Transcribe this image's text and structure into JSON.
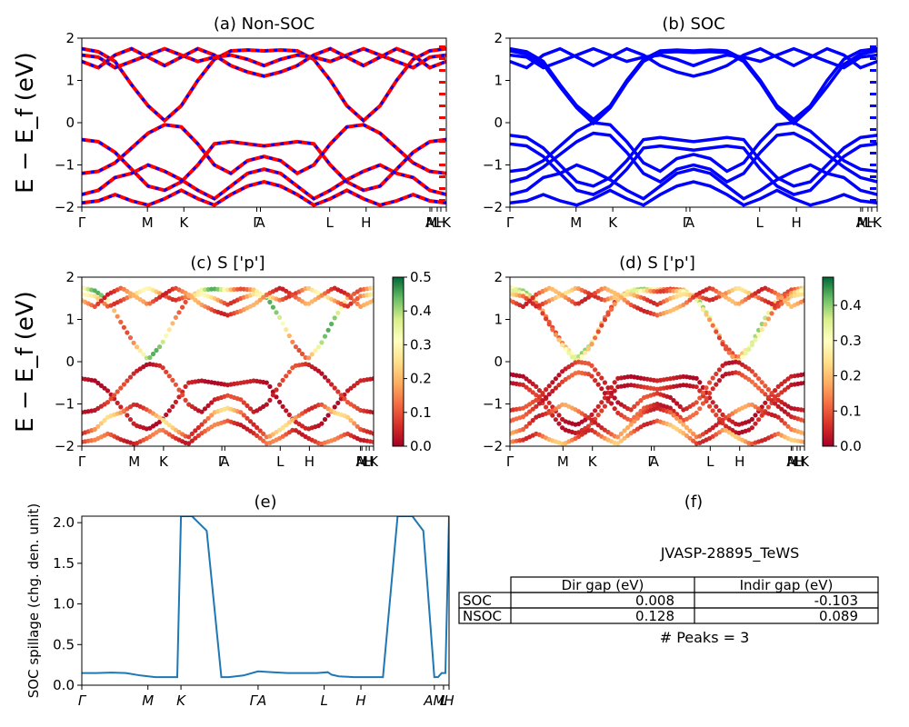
{
  "chart_data": [
    {
      "id": "a",
      "type": "line",
      "title": "(a) Non-SOC",
      "ylabel": "E − E_f (eV)",
      "ylim": [
        -2,
        2
      ],
      "yticks": [
        "2",
        "1",
        "0",
        "−1",
        "−2"
      ],
      "kpath_labels": [
        "Γ",
        "M",
        "K",
        "Γ",
        "A",
        "L",
        "H",
        "A",
        "M",
        "L",
        "H",
        "K"
      ],
      "series_colors": [
        "#ff0000",
        "#0000ff"
      ],
      "series": [
        {
          "values": [
            1.75,
            1.68,
            1.45,
            0.9,
            0.4,
            0.05,
            0.4,
            1.0,
            1.5,
            1.7,
            1.72,
            1.7,
            1.72,
            1.7,
            1.5,
            1.0,
            0.4,
            0.05,
            0.4,
            1.0,
            1.5,
            1.7,
            1.75
          ]
        },
        {
          "values": [
            1.6,
            1.55,
            1.3,
            1.45,
            1.6,
            1.75,
            1.6,
            1.45,
            1.55,
            1.6,
            1.5,
            1.35,
            1.5,
            1.6,
            1.55,
            1.45,
            1.6,
            1.75,
            1.6,
            1.45,
            1.3,
            1.55,
            1.6
          ]
        },
        {
          "values": [
            1.45,
            1.3,
            1.6,
            1.75,
            1.55,
            1.35,
            1.55,
            1.75,
            1.6,
            1.35,
            1.2,
            1.1,
            1.2,
            1.35,
            1.6,
            1.75,
            1.55,
            1.35,
            1.55,
            1.75,
            1.6,
            1.3,
            1.45
          ]
        },
        {
          "values": [
            -0.4,
            -0.45,
            -0.7,
            -1.1,
            -1.5,
            -1.6,
            -1.4,
            -1.0,
            -0.5,
            -0.45,
            -0.5,
            -0.55,
            -0.5,
            -0.45,
            -0.5,
            -1.0,
            -1.4,
            -1.6,
            -1.5,
            -1.1,
            -0.7,
            -0.45,
            -0.4
          ]
        },
        {
          "values": [
            -1.2,
            -1.15,
            -0.95,
            -0.6,
            -0.25,
            -0.05,
            -0.1,
            -0.5,
            -1.0,
            -1.2,
            -0.9,
            -0.8,
            -0.9,
            -1.2,
            -1.0,
            -0.5,
            -0.1,
            -0.05,
            -0.25,
            -0.6,
            -0.95,
            -1.15,
            -1.2
          ]
        },
        {
          "values": [
            -1.7,
            -1.6,
            -1.3,
            -1.2,
            -1.0,
            -1.15,
            -1.35,
            -1.6,
            -1.8,
            -1.5,
            -1.2,
            -1.1,
            -1.2,
            -1.5,
            -1.8,
            -1.6,
            -1.35,
            -1.15,
            -1.0,
            -1.2,
            -1.3,
            -1.6,
            -1.7
          ]
        },
        {
          "values": [
            -1.9,
            -1.85,
            -1.7,
            -1.85,
            -1.95,
            -1.8,
            -1.6,
            -1.8,
            -1.95,
            -1.7,
            -1.5,
            -1.4,
            -1.5,
            -1.7,
            -1.95,
            -1.8,
            -1.6,
            -1.8,
            -1.95,
            -1.85,
            -1.7,
            -1.85,
            -1.9
          ]
        }
      ]
    },
    {
      "id": "b",
      "type": "line",
      "title": "(b) SOC",
      "ylim": [
        -2,
        2
      ],
      "yticks": [
        "2",
        "1",
        "0",
        "−1",
        "−2"
      ],
      "kpath_labels": [
        "Γ",
        "M",
        "K",
        "Γ",
        "A",
        "L",
        "H",
        "A",
        "M",
        "L",
        "H",
        "K"
      ],
      "series_colors": [
        "#0000ff"
      ],
      "series": [
        {
          "values": [
            1.75,
            1.68,
            1.45,
            0.9,
            0.4,
            0.08,
            0.4,
            1.0,
            1.5,
            1.7,
            1.72,
            1.7,
            1.72,
            1.7,
            1.5,
            1.0,
            0.4,
            0.08,
            0.4,
            1.0,
            1.5,
            1.7,
            1.75
          ]
        },
        {
          "values": [
            1.7,
            1.62,
            1.38,
            0.85,
            0.35,
            -0.02,
            0.35,
            0.95,
            1.45,
            1.66,
            1.68,
            1.66,
            1.68,
            1.66,
            1.45,
            0.95,
            0.35,
            -0.02,
            0.35,
            0.85,
            1.38,
            1.62,
            1.7
          ]
        },
        {
          "values": [
            1.6,
            1.55,
            1.3,
            1.45,
            1.6,
            1.75,
            1.6,
            1.45,
            1.55,
            1.6,
            1.5,
            1.35,
            1.5,
            1.6,
            1.55,
            1.45,
            1.6,
            1.75,
            1.6,
            1.45,
            1.3,
            1.55,
            1.6
          ]
        },
        {
          "values": [
            1.45,
            1.3,
            1.6,
            1.75,
            1.55,
            1.35,
            1.55,
            1.75,
            1.6,
            1.35,
            1.2,
            1.1,
            1.2,
            1.35,
            1.6,
            1.75,
            1.55,
            1.35,
            1.55,
            1.75,
            1.6,
            1.3,
            1.45
          ]
        },
        {
          "values": [
            -0.3,
            -0.35,
            -0.6,
            -1.0,
            -1.4,
            -1.5,
            -1.3,
            -0.9,
            -0.4,
            -0.35,
            -0.4,
            -0.45,
            -0.4,
            -0.35,
            -0.4,
            -0.9,
            -1.3,
            -1.5,
            -1.4,
            -1.0,
            -0.6,
            -0.35,
            -0.3
          ]
        },
        {
          "values": [
            -0.5,
            -0.55,
            -0.8,
            -1.2,
            -1.6,
            -1.7,
            -1.5,
            -1.1,
            -0.6,
            -0.55,
            -0.6,
            -0.65,
            -0.6,
            -0.55,
            -0.6,
            -1.1,
            -1.5,
            -1.7,
            -1.6,
            -1.2,
            -0.8,
            -0.55,
            -0.5
          ]
        },
        {
          "values": [
            -1.15,
            -1.1,
            -0.9,
            -0.55,
            -0.2,
            0.0,
            -0.05,
            -0.45,
            -0.95,
            -1.15,
            -0.85,
            -0.75,
            -0.85,
            -1.15,
            -0.95,
            -0.45,
            -0.05,
            0.0,
            -0.2,
            -0.55,
            -0.9,
            -1.1,
            -1.15
          ]
        },
        {
          "values": [
            -1.4,
            -1.3,
            -1.05,
            -0.75,
            -0.45,
            -0.25,
            -0.3,
            -0.7,
            -1.2,
            -1.4,
            -1.1,
            -1.0,
            -1.1,
            -1.4,
            -1.2,
            -0.7,
            -0.3,
            -0.25,
            -0.45,
            -0.75,
            -1.05,
            -1.3,
            -1.4
          ]
        },
        {
          "values": [
            -1.7,
            -1.6,
            -1.3,
            -1.2,
            -1.0,
            -1.15,
            -1.35,
            -1.6,
            -1.8,
            -1.5,
            -1.2,
            -1.1,
            -1.2,
            -1.5,
            -1.8,
            -1.6,
            -1.35,
            -1.15,
            -1.0,
            -1.2,
            -1.3,
            -1.6,
            -1.7
          ]
        },
        {
          "values": [
            -1.9,
            -1.85,
            -1.7,
            -1.85,
            -1.95,
            -1.8,
            -1.6,
            -1.8,
            -1.95,
            -1.7,
            -1.5,
            -1.4,
            -1.5,
            -1.7,
            -1.95,
            -1.8,
            -1.6,
            -1.8,
            -1.95,
            -1.85,
            -1.7,
            -1.85,
            -1.9
          ]
        }
      ]
    },
    {
      "id": "c",
      "type": "scatter",
      "title": "(c)  S ['p']",
      "ylabel": "E − E_f (eV)",
      "ylim": [
        -2,
        2
      ],
      "yticks": [
        "2",
        "1",
        "0",
        "−1",
        "−2"
      ],
      "kpath_labels": [
        "Γ",
        "M",
        "K",
        "Γ",
        "A",
        "L",
        "H",
        "A",
        "M",
        "L",
        "H",
        "K"
      ],
      "colorbar": {
        "min": 0.0,
        "max": 0.5,
        "ticks": [
          "0.5",
          "0.4",
          "0.3",
          "0.2",
          "0.1",
          "0.0"
        ],
        "colormap": [
          "#006837",
          "#66bd63",
          "#d9ef8b",
          "#ffffbf",
          "#fee08b",
          "#fdae61",
          "#f46d43",
          "#d73027",
          "#a50026"
        ]
      },
      "band_weights": [
        0.45,
        0.3,
        0.2,
        0.05,
        0.1,
        0.25,
        0.15
      ],
      "bands_from": "a"
    },
    {
      "id": "d",
      "type": "scatter",
      "title": "(d) S ['p']",
      "ylim": [
        -2,
        2
      ],
      "yticks": [
        "2",
        "1",
        "0",
        "−1",
        "−2"
      ],
      "kpath_labels": [
        "Γ",
        "M",
        "K",
        "Γ",
        "A",
        "L",
        "H",
        "A",
        "M",
        "L",
        "H",
        "K"
      ],
      "colorbar": {
        "min": 0.0,
        "max": 0.48,
        "ticks": [
          "0.4",
          "0.3",
          "0.2",
          "0.1",
          "0.0"
        ],
        "colormap": [
          "#006837",
          "#66bd63",
          "#d9ef8b",
          "#ffffbf",
          "#fee08b",
          "#fdae61",
          "#f46d43",
          "#d73027",
          "#a50026"
        ]
      },
      "band_weights": [
        0.4,
        0.35,
        0.25,
        0.2,
        0.05,
        0.08,
        0.1,
        0.12,
        0.18,
        0.22
      ],
      "bands_from": "b"
    },
    {
      "id": "e",
      "type": "line",
      "title": "(e)",
      "ylabel": "SOC spillage (chg. den. unit)",
      "ylim": [
        0,
        2.08
      ],
      "yticks": [
        "2.0",
        "1.5",
        "1.0",
        "0.5",
        "0.0"
      ],
      "kpath_labels": [
        "Γ",
        "M",
        "K",
        "ΓA",
        "L",
        "H",
        "AM",
        "L",
        "H"
      ],
      "color": "#1f77b4",
      "x": [
        0,
        0.04,
        0.08,
        0.12,
        0.16,
        0.2,
        0.24,
        0.26,
        0.27,
        0.28,
        0.3,
        0.34,
        0.38,
        0.4,
        0.44,
        0.48,
        0.52,
        0.56,
        0.6,
        0.64,
        0.67,
        0.68,
        0.7,
        0.74,
        0.78,
        0.82,
        0.86,
        0.9,
        0.93,
        0.96,
        0.97,
        0.98,
        0.99,
        1.0
      ],
      "values": [
        0.15,
        0.15,
        0.155,
        0.15,
        0.12,
        0.1,
        0.1,
        0.1,
        2.08,
        2.08,
        2.08,
        1.9,
        0.1,
        0.1,
        0.12,
        0.17,
        0.16,
        0.15,
        0.15,
        0.15,
        0.16,
        0.13,
        0.11,
        0.1,
        0.1,
        0.1,
        2.08,
        2.08,
        1.9,
        0.1,
        0.1,
        0.15,
        0.15,
        2.08
      ]
    }
  ],
  "table_panel": {
    "title": "(f)",
    "material": "JVASP-28895_TeWS",
    "headers": [
      "",
      "Dir gap (eV)",
      "Indir gap (eV)"
    ],
    "rows": [
      {
        "label": "SOC",
        "dir": "0.008",
        "indir": "-0.103"
      },
      {
        "label": "NSOC",
        "dir": "0.128",
        "indir": "0.089"
      }
    ],
    "peaks": "# Peaks = 3"
  }
}
